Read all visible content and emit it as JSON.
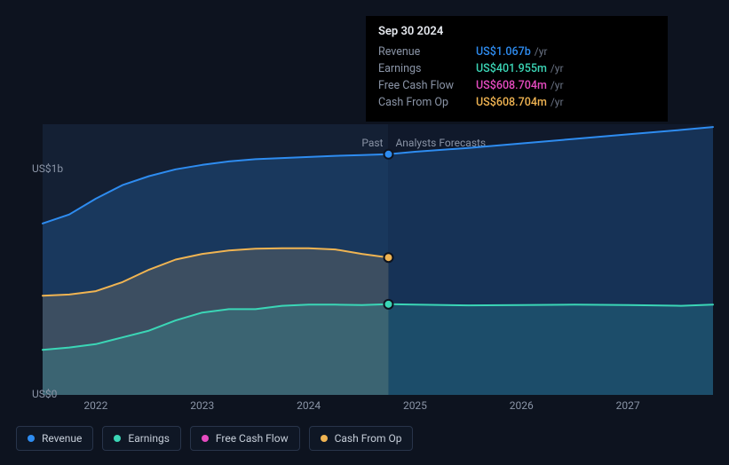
{
  "chart": {
    "type": "area-line",
    "background_color": "#0d131f",
    "plot_background_color": "#10192b",
    "past_shade_color": "rgba(30,45,70,0.35)",
    "grid_color": "#1a2538",
    "label_color": "#8a94a6",
    "text_color": "#c5cdd8",
    "label_fontsize": 12,
    "y_axis": {
      "min": 0,
      "max": 1200,
      "ticks": [
        {
          "value": 0,
          "label": "US$0"
        },
        {
          "value": 1000,
          "label": "US$1b"
        }
      ]
    },
    "x_axis": {
      "min": 2021.5,
      "max": 2027.8,
      "split_at": 2024.75,
      "ticks": [
        2022,
        2023,
        2024,
        2025,
        2026,
        2027
      ]
    },
    "section_labels": {
      "past": "Past",
      "forecast": "Analysts Forecasts"
    },
    "series": [
      {
        "key": "revenue",
        "label": "Revenue",
        "color": "#2e8cf0",
        "fill_opacity": 0.22,
        "line_width": 2,
        "past": [
          [
            2021.5,
            760
          ],
          [
            2021.75,
            800
          ],
          [
            2022.0,
            870
          ],
          [
            2022.25,
            930
          ],
          [
            2022.5,
            970
          ],
          [
            2022.75,
            1000
          ],
          [
            2023.0,
            1020
          ],
          [
            2023.25,
            1035
          ],
          [
            2023.5,
            1045
          ],
          [
            2023.75,
            1050
          ],
          [
            2024.0,
            1055
          ],
          [
            2024.25,
            1060
          ],
          [
            2024.5,
            1063
          ],
          [
            2024.75,
            1067
          ]
        ],
        "forecast": [
          [
            2024.75,
            1067
          ],
          [
            2025.0,
            1078
          ],
          [
            2025.5,
            1095
          ],
          [
            2026.0,
            1115
          ],
          [
            2026.5,
            1135
          ],
          [
            2027.0,
            1155
          ],
          [
            2027.5,
            1175
          ],
          [
            2027.8,
            1188
          ]
        ]
      },
      {
        "key": "earnings",
        "label": "Earnings",
        "color": "#3bd6b6",
        "fill_opacity": 0.18,
        "line_width": 2,
        "past": [
          [
            2021.5,
            200
          ],
          [
            2021.75,
            210
          ],
          [
            2022.0,
            225
          ],
          [
            2022.25,
            255
          ],
          [
            2022.5,
            285
          ],
          [
            2022.75,
            330
          ],
          [
            2023.0,
            365
          ],
          [
            2023.25,
            380
          ],
          [
            2023.5,
            380
          ],
          [
            2023.75,
            395
          ],
          [
            2024.0,
            400
          ],
          [
            2024.25,
            400
          ],
          [
            2024.5,
            398
          ],
          [
            2024.75,
            402
          ]
        ],
        "forecast": [
          [
            2024.75,
            402
          ],
          [
            2025.0,
            400
          ],
          [
            2025.5,
            397
          ],
          [
            2026.0,
            398
          ],
          [
            2026.5,
            400
          ],
          [
            2027.0,
            398
          ],
          [
            2027.5,
            395
          ],
          [
            2027.8,
            400
          ]
        ]
      },
      {
        "key": "fcf",
        "label": "Free Cash Flow",
        "color": "#e64bc0",
        "fill_opacity": 0.0,
        "line_width": 0,
        "past": [],
        "forecast": []
      },
      {
        "key": "cfo",
        "label": "Cash From Op",
        "color": "#f0b452",
        "fill_opacity": 0.2,
        "line_width": 2,
        "past": [
          [
            2021.5,
            440
          ],
          [
            2021.75,
            445
          ],
          [
            2022.0,
            460
          ],
          [
            2022.25,
            500
          ],
          [
            2022.5,
            555
          ],
          [
            2022.75,
            600
          ],
          [
            2023.0,
            625
          ],
          [
            2023.25,
            640
          ],
          [
            2023.5,
            648
          ],
          [
            2023.75,
            650
          ],
          [
            2024.0,
            650
          ],
          [
            2024.25,
            645
          ],
          [
            2024.5,
            625
          ],
          [
            2024.75,
            609
          ]
        ],
        "forecast": []
      }
    ],
    "markers": [
      {
        "series": "revenue",
        "x": 2024.75,
        "y": 1067
      },
      {
        "series": "cfo",
        "x": 2024.75,
        "y": 609
      },
      {
        "series": "earnings",
        "x": 2024.75,
        "y": 402
      }
    ]
  },
  "tooltip": {
    "date": "Sep 30 2024",
    "unit": "/yr",
    "rows": [
      {
        "label": "Revenue",
        "value": "US$1.067b",
        "color": "#2e8cf0"
      },
      {
        "label": "Earnings",
        "value": "US$401.955m",
        "color": "#3bd6b6"
      },
      {
        "label": "Free Cash Flow",
        "value": "US$608.704m",
        "color": "#e64bc0"
      },
      {
        "label": "Cash From Op",
        "value": "US$608.704m",
        "color": "#f0b452"
      }
    ]
  },
  "legend": {
    "items": [
      {
        "key": "revenue",
        "label": "Revenue",
        "color": "#2e8cf0"
      },
      {
        "key": "earnings",
        "label": "Earnings",
        "color": "#3bd6b6"
      },
      {
        "key": "fcf",
        "label": "Free Cash Flow",
        "color": "#e64bc0"
      },
      {
        "key": "cfo",
        "label": "Cash From Op",
        "color": "#f0b452"
      }
    ]
  }
}
